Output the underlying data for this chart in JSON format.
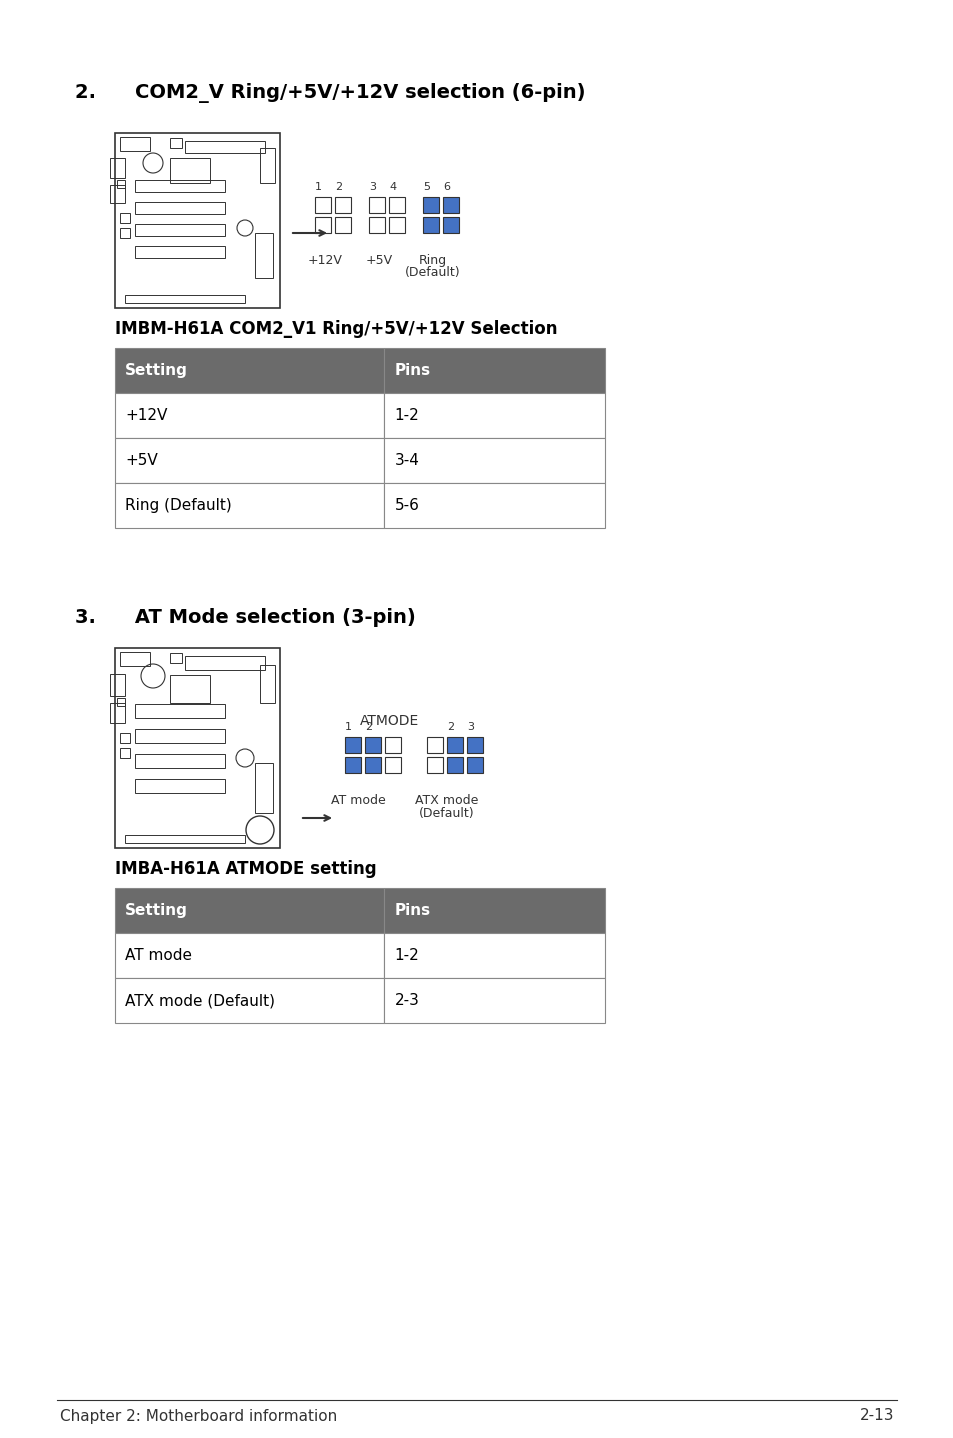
{
  "page_title": "",
  "section2_title": "2.  COM2_V Ring/+5V/+12V selection (6-pin)",
  "section2_caption": "IMBM-H61A COM2_V1 Ring/+5V/+12V Selection",
  "table1_header": [
    "Setting",
    "Pins"
  ],
  "table1_rows": [
    [
      "+12V",
      "1-2"
    ],
    [
      "+5V",
      "3-4"
    ],
    [
      "Ring (Default)",
      "5-6"
    ]
  ],
  "section3_title": "3.  AT Mode selection (3-pin)",
  "section3_caption": "IMBA-H61A ATMODE setting",
  "table2_header": [
    "Setting",
    "Pins"
  ],
  "table2_rows": [
    [
      "AT mode",
      "1-2"
    ],
    [
      "ATX mode (Default)",
      "2-3"
    ]
  ],
  "header_bg": "#6b6b6b",
  "header_fg": "#ffffff",
  "row_bg_odd": "#ffffff",
  "row_bg_even": "#f0f0f0",
  "border_color": "#aaaaaa",
  "footer_text": "Chapter 2: Motherboard information",
  "footer_right": "2-13",
  "bg_color": "#ffffff"
}
